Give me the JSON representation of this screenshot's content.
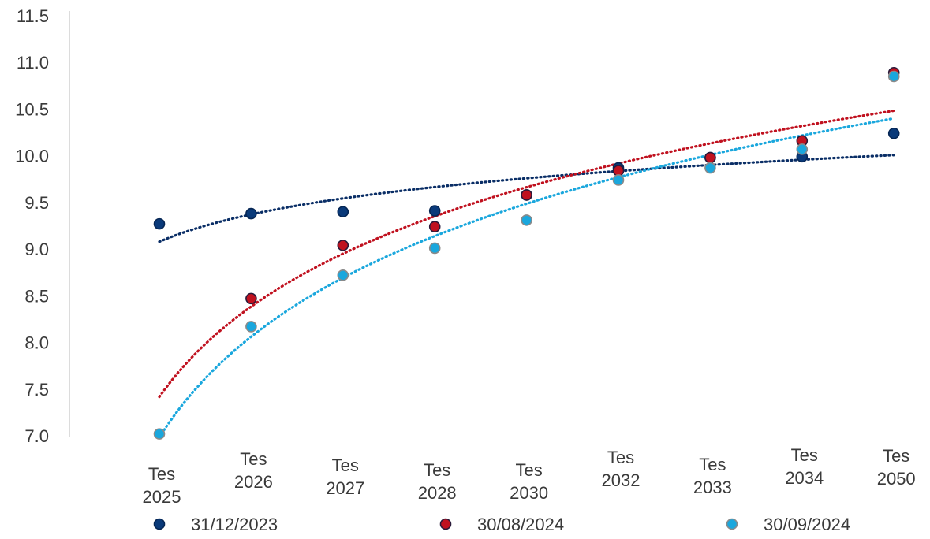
{
  "chart_data": {
    "type": "scatter",
    "title": "",
    "xlabel": "",
    "ylabel": "",
    "categories": [
      [
        "Tes",
        "2025"
      ],
      [
        "Tes",
        "2026"
      ],
      [
        "Tes",
        "2027"
      ],
      [
        "Tes",
        "2028"
      ],
      [
        "Tes",
        "2030"
      ],
      [
        "Tes",
        "2032"
      ],
      [
        "Tes",
        "2033"
      ],
      [
        "Tes",
        "2034"
      ],
      [
        "Tes",
        "2050"
      ]
    ],
    "ylim": [
      7.0,
      11.5
    ],
    "yticks": [
      "7.0",
      "7.5",
      "8.0",
      "8.5",
      "9.0",
      "9.5",
      "10.0",
      "10.5",
      "11.0",
      "11.5"
    ],
    "grid": false,
    "legend_position": "bottom",
    "series": [
      {
        "name": "31/12/2023",
        "color": "#0a3a7a",
        "edge": "#062654",
        "trend_color": "#0a2e66",
        "values": [
          9.27,
          9.38,
          9.4,
          9.41,
          9.58,
          9.87,
          9.98,
          9.99,
          10.24
        ]
      },
      {
        "name": "30/08/2024",
        "color": "#c0111f",
        "edge": "#2a1a3a",
        "trend_color": "#c0111f",
        "values": [
          null,
          8.47,
          9.04,
          9.24,
          9.58,
          9.84,
          9.98,
          10.16,
          10.89
        ]
      },
      {
        "name": "30/09/2024",
        "color": "#1aa7dd",
        "edge": "#8a8a8a",
        "trend_color": "#1aa7dd",
        "values": [
          7.02,
          8.17,
          8.72,
          9.01,
          9.31,
          9.74,
          9.87,
          10.07,
          10.85
        ]
      }
    ],
    "trendlines": "logarithmic, dotted"
  }
}
